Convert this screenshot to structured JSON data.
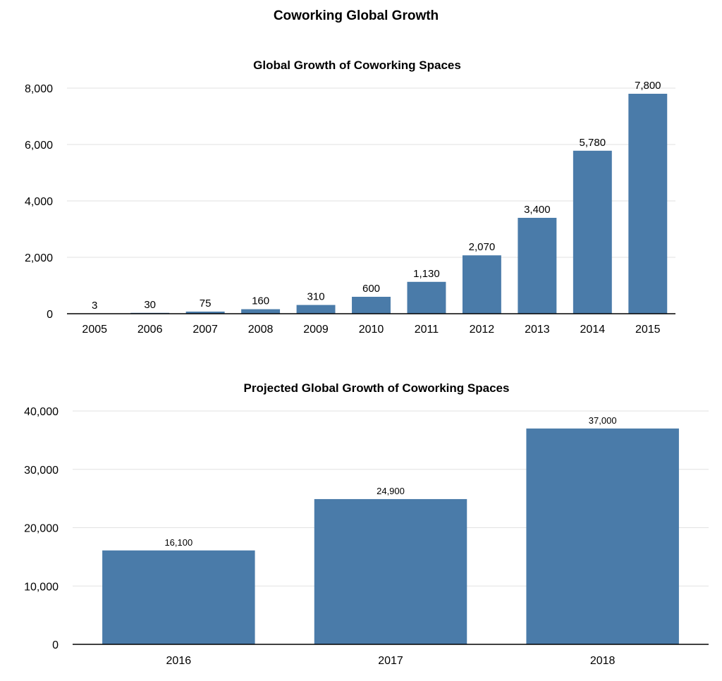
{
  "title": "Coworking Global Growth",
  "colors": {
    "bar": "#4a7ba9"
  },
  "chart_data": [
    {
      "type": "bar",
      "title": "Global Growth of Coworking Spaces",
      "categories": [
        "2005",
        "2006",
        "2007",
        "2008",
        "2009",
        "2010",
        "2011",
        "2012",
        "2013",
        "2014",
        "2015"
      ],
      "values": [
        3,
        30,
        75,
        160,
        310,
        600,
        1130,
        2070,
        3400,
        5780,
        7800
      ],
      "data_labels": [
        "3",
        "30",
        "75",
        "160",
        "310",
        "600",
        "1,130",
        "2,070",
        "3,400",
        "5,780",
        "7,800"
      ],
      "ylim": [
        0,
        8000
      ],
      "yticks": [
        0,
        2000,
        4000,
        6000,
        8000
      ],
      "ytick_labels": [
        "0",
        "2,000",
        "4,000",
        "6,000",
        "8,000"
      ],
      "grid": true,
      "legend": "none"
    },
    {
      "type": "bar",
      "title": "Projected Global Growth of Coworking Spaces",
      "categories": [
        "2016",
        "2017",
        "2018"
      ],
      "values": [
        16100,
        24900,
        37000
      ],
      "data_labels": [
        "16,100",
        "24,900",
        "37,000"
      ],
      "ylim": [
        0,
        40000
      ],
      "yticks": [
        0,
        10000,
        20000,
        30000,
        40000
      ],
      "ytick_labels": [
        "0",
        "10,000",
        "20,000",
        "30,000",
        "40,000"
      ],
      "grid": true,
      "legend": "none"
    }
  ]
}
